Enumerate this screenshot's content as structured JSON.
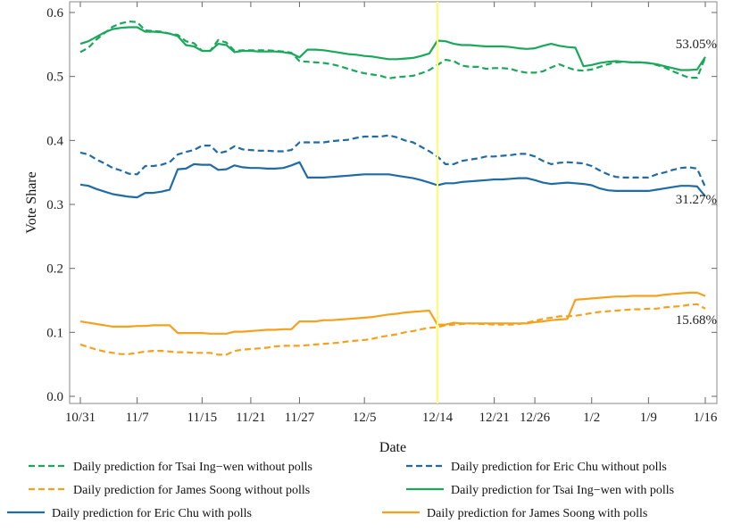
{
  "chart_data": {
    "type": "line",
    "xlabel": "Date",
    "ylabel": "Vote Share",
    "x_tick_labels": [
      "10/31",
      "11/7",
      "11/15",
      "11/21",
      "11/27",
      "12/5",
      "12/14",
      "12/21",
      "12/26",
      "1/2",
      "1/9",
      "1/16"
    ],
    "y_tick_labels": [
      "0.0",
      "0.1",
      "0.2",
      "0.3",
      "0.4",
      "0.5",
      "0.6"
    ],
    "ylim": [
      0,
      0.6
    ],
    "grid": false,
    "legend_position": "bottom",
    "vertical_marker": {
      "date": "12/14",
      "color": "#ffff66"
    },
    "end_labels": [
      "53.05%",
      "31.27%",
      "15.68%"
    ],
    "colors": {
      "tsai": "#1aa85a",
      "chu": "#1f6ba5",
      "soong": "#f4a11d"
    },
    "x": [
      "10/31",
      "11/1",
      "11/2",
      "11/3",
      "11/4",
      "11/5",
      "11/6",
      "11/7",
      "11/8",
      "11/9",
      "11/10",
      "11/11",
      "11/12",
      "11/13",
      "11/14",
      "11/15",
      "11/16",
      "11/17",
      "11/18",
      "11/19",
      "11/20",
      "11/21",
      "11/22",
      "11/23",
      "11/24",
      "11/25",
      "11/26",
      "11/27",
      "11/28",
      "11/29",
      "11/30",
      "12/1",
      "12/2",
      "12/3",
      "12/4",
      "12/5",
      "12/6",
      "12/7",
      "12/8",
      "12/9",
      "12/10",
      "12/11",
      "12/12",
      "12/13",
      "12/14",
      "12/15",
      "12/16",
      "12/17",
      "12/18",
      "12/19",
      "12/20",
      "12/21",
      "12/22",
      "12/23",
      "12/24",
      "12/25",
      "12/26",
      "12/27",
      "12/28",
      "12/29",
      "12/30",
      "12/31",
      "1/1",
      "1/2",
      "1/3",
      "1/4",
      "1/5",
      "1/6",
      "1/7",
      "1/8",
      "1/9",
      "1/10",
      "1/11",
      "1/12",
      "1/13",
      "1/14",
      "1/15",
      "1/16"
    ],
    "series": [
      {
        "name": "Daily prediction for Tsai Ing−wen without polls",
        "color_key": "tsai",
        "style": "dashed",
        "values": [
          0.538,
          0.545,
          0.558,
          0.568,
          0.578,
          0.583,
          0.586,
          0.585,
          0.572,
          0.571,
          0.57,
          0.567,
          0.565,
          0.555,
          0.552,
          0.54,
          0.54,
          0.557,
          0.553,
          0.54,
          0.541,
          0.541,
          0.541,
          0.541,
          0.54,
          0.539,
          0.537,
          0.524,
          0.523,
          0.522,
          0.521,
          0.519,
          0.516,
          0.512,
          0.508,
          0.505,
          0.503,
          0.501,
          0.497,
          0.499,
          0.5,
          0.501,
          0.505,
          0.51,
          0.518,
          0.526,
          0.524,
          0.517,
          0.515,
          0.515,
          0.512,
          0.513,
          0.513,
          0.512,
          0.508,
          0.506,
          0.506,
          0.508,
          0.514,
          0.519,
          0.514,
          0.51,
          0.509,
          0.511,
          0.515,
          0.519,
          0.522,
          0.523,
          0.522,
          0.522,
          0.521,
          0.518,
          0.514,
          0.508,
          0.503,
          0.498,
          0.498,
          0.53
        ]
      },
      {
        "name": "Daily prediction for Eric Chu without polls",
        "color_key": "chu",
        "style": "dashed",
        "values": [
          0.381,
          0.378,
          0.37,
          0.364,
          0.357,
          0.353,
          0.348,
          0.347,
          0.36,
          0.36,
          0.362,
          0.366,
          0.378,
          0.382,
          0.385,
          0.392,
          0.392,
          0.38,
          0.383,
          0.391,
          0.386,
          0.385,
          0.384,
          0.384,
          0.383,
          0.383,
          0.385,
          0.397,
          0.397,
          0.397,
          0.397,
          0.399,
          0.4,
          0.401,
          0.404,
          0.406,
          0.406,
          0.406,
          0.408,
          0.405,
          0.4,
          0.397,
          0.39,
          0.383,
          0.375,
          0.363,
          0.363,
          0.368,
          0.37,
          0.372,
          0.375,
          0.375,
          0.376,
          0.377,
          0.379,
          0.379,
          0.375,
          0.368,
          0.363,
          0.365,
          0.366,
          0.365,
          0.364,
          0.36,
          0.353,
          0.347,
          0.343,
          0.342,
          0.342,
          0.342,
          0.342,
          0.347,
          0.35,
          0.354,
          0.357,
          0.358,
          0.356,
          0.327
        ]
      },
      {
        "name": "Daily prediction for James Soong without polls",
        "color_key": "soong",
        "style": "dashed",
        "values": [
          0.081,
          0.077,
          0.073,
          0.07,
          0.068,
          0.066,
          0.066,
          0.068,
          0.07,
          0.071,
          0.071,
          0.07,
          0.069,
          0.069,
          0.068,
          0.068,
          0.068,
          0.065,
          0.065,
          0.071,
          0.073,
          0.074,
          0.075,
          0.076,
          0.078,
          0.079,
          0.079,
          0.079,
          0.08,
          0.081,
          0.082,
          0.083,
          0.084,
          0.086,
          0.087,
          0.088,
          0.09,
          0.093,
          0.095,
          0.097,
          0.1,
          0.102,
          0.105,
          0.107,
          0.108,
          0.111,
          0.112,
          0.113,
          0.114,
          0.113,
          0.113,
          0.112,
          0.112,
          0.112,
          0.113,
          0.115,
          0.118,
          0.121,
          0.123,
          0.125,
          0.125,
          0.126,
          0.128,
          0.13,
          0.132,
          0.133,
          0.134,
          0.135,
          0.136,
          0.136,
          0.137,
          0.137,
          0.139,
          0.14,
          0.141,
          0.143,
          0.144,
          0.137
        ]
      },
      {
        "name": "Daily prediction for Tsai Ing−wen with polls",
        "color_key": "tsai",
        "style": "solid",
        "values": [
          0.551,
          0.555,
          0.562,
          0.569,
          0.574,
          0.576,
          0.577,
          0.577,
          0.57,
          0.57,
          0.569,
          0.567,
          0.563,
          0.549,
          0.547,
          0.54,
          0.54,
          0.551,
          0.549,
          0.538,
          0.54,
          0.54,
          0.539,
          0.539,
          0.539,
          0.538,
          0.536,
          0.53,
          0.542,
          0.542,
          0.541,
          0.539,
          0.537,
          0.535,
          0.534,
          0.532,
          0.531,
          0.529,
          0.527,
          0.527,
          0.528,
          0.529,
          0.532,
          0.536,
          0.556,
          0.555,
          0.551,
          0.549,
          0.549,
          0.548,
          0.547,
          0.547,
          0.547,
          0.546,
          0.544,
          0.543,
          0.544,
          0.548,
          0.551,
          0.548,
          0.546,
          0.545,
          0.516,
          0.518,
          0.521,
          0.523,
          0.524,
          0.523,
          0.522,
          0.522,
          0.521,
          0.519,
          0.516,
          0.513,
          0.51,
          0.51,
          0.511,
          0.5305
        ]
      },
      {
        "name": "Daily prediction for Eric Chu with polls",
        "color_key": "chu",
        "style": "solid",
        "values": [
          0.331,
          0.329,
          0.324,
          0.32,
          0.316,
          0.314,
          0.312,
          0.311,
          0.318,
          0.318,
          0.32,
          0.323,
          0.355,
          0.356,
          0.363,
          0.362,
          0.362,
          0.354,
          0.355,
          0.361,
          0.358,
          0.357,
          0.357,
          0.356,
          0.356,
          0.357,
          0.361,
          0.366,
          0.342,
          0.342,
          0.342,
          0.343,
          0.344,
          0.345,
          0.346,
          0.347,
          0.347,
          0.347,
          0.347,
          0.345,
          0.343,
          0.341,
          0.338,
          0.334,
          0.33,
          0.333,
          0.333,
          0.335,
          0.336,
          0.337,
          0.338,
          0.339,
          0.339,
          0.34,
          0.341,
          0.341,
          0.338,
          0.334,
          0.332,
          0.333,
          0.334,
          0.333,
          0.332,
          0.33,
          0.325,
          0.322,
          0.321,
          0.321,
          0.321,
          0.321,
          0.321,
          0.323,
          0.325,
          0.327,
          0.329,
          0.329,
          0.328,
          0.3127
        ]
      },
      {
        "name": "Daily prediction for James Soong with polls",
        "color_key": "soong",
        "style": "solid",
        "values": [
          0.117,
          0.115,
          0.113,
          0.111,
          0.109,
          0.109,
          0.109,
          0.11,
          0.11,
          0.111,
          0.111,
          0.111,
          0.099,
          0.099,
          0.099,
          0.099,
          0.098,
          0.098,
          0.098,
          0.101,
          0.101,
          0.102,
          0.103,
          0.104,
          0.104,
          0.105,
          0.105,
          0.117,
          0.117,
          0.117,
          0.119,
          0.119,
          0.12,
          0.121,
          0.122,
          0.123,
          0.124,
          0.126,
          0.128,
          0.129,
          0.131,
          0.132,
          0.133,
          0.134,
          0.112,
          0.112,
          0.115,
          0.114,
          0.114,
          0.114,
          0.114,
          0.114,
          0.114,
          0.114,
          0.114,
          0.114,
          0.116,
          0.117,
          0.119,
          0.12,
          0.121,
          0.151,
          0.152,
          0.153,
          0.154,
          0.155,
          0.156,
          0.156,
          0.157,
          0.157,
          0.157,
          0.157,
          0.159,
          0.16,
          0.161,
          0.162,
          0.162,
          0.1568
        ]
      }
    ]
  }
}
